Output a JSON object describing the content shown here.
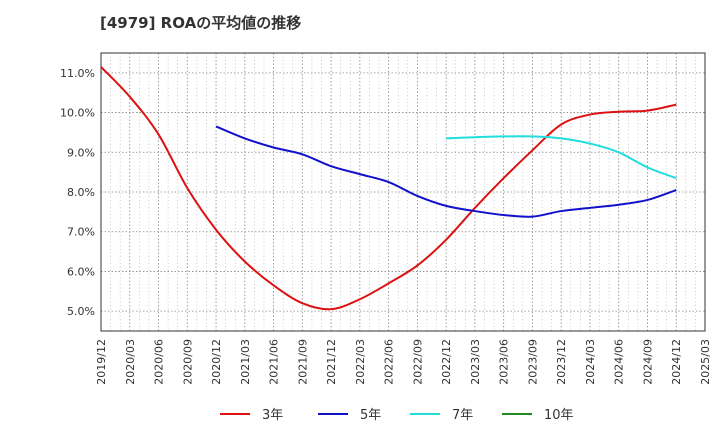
{
  "title": "[4979]  ROAの平均値の推移",
  "chart_data": {
    "type": "line",
    "title": "[4979]  ROAの平均値の推移",
    "xlabel": "",
    "ylabel": "",
    "x_ticks": [
      "2019/12",
      "2020/03",
      "2020/06",
      "2020/09",
      "2020/12",
      "2021/03",
      "2021/06",
      "2021/09",
      "2021/12",
      "2022/03",
      "2022/06",
      "2022/09",
      "2022/12",
      "2023/03",
      "2023/06",
      "2023/09",
      "2023/12",
      "2024/03",
      "2024/06",
      "2024/09",
      "2024/12",
      "2025/03"
    ],
    "y_ticks": [
      "5.0%",
      "6.0%",
      "7.0%",
      "8.0%",
      "9.0%",
      "10.0%",
      "11.0%"
    ],
    "ylim": [
      4.5,
      11.5
    ],
    "grid": true,
    "legend_position": "bottom",
    "series": [
      {
        "name": "3年",
        "color": "#dd1111",
        "x": [
          "2019/12",
          "2020/03",
          "2020/06",
          "2020/09",
          "2020/12",
          "2021/03",
          "2021/06",
          "2021/09",
          "2021/12",
          "2022/03",
          "2022/06",
          "2022/09",
          "2022/12",
          "2023/03",
          "2023/06",
          "2023/09",
          "2023/12",
          "2024/03",
          "2024/06",
          "2024/09",
          "2024/12"
        ],
        "values": [
          11.15,
          10.4,
          9.45,
          8.1,
          7.05,
          6.25,
          5.65,
          5.2,
          5.05,
          5.3,
          5.7,
          6.15,
          6.8,
          7.6,
          8.35,
          9.05,
          9.7,
          9.95,
          10.02,
          10.05,
          10.2
        ]
      },
      {
        "name": "5年",
        "color": "#1111cc",
        "x": [
          "2020/12",
          "2021/03",
          "2021/06",
          "2021/09",
          "2021/12",
          "2022/03",
          "2022/06",
          "2022/09",
          "2022/12",
          "2023/03",
          "2023/06",
          "2023/09",
          "2023/12",
          "2024/03",
          "2024/06",
          "2024/09",
          "2024/12"
        ],
        "values": [
          9.65,
          9.35,
          9.12,
          8.95,
          8.65,
          8.45,
          8.25,
          7.9,
          7.65,
          7.52,
          7.42,
          7.38,
          7.52,
          7.6,
          7.68,
          7.8,
          8.05
        ]
      },
      {
        "name": "7年",
        "color": "#22dddd",
        "x": [
          "2022/12",
          "2023/03",
          "2023/06",
          "2023/09",
          "2023/12",
          "2024/03",
          "2024/06",
          "2024/09",
          "2024/12"
        ],
        "values": [
          9.35,
          9.38,
          9.4,
          9.4,
          9.35,
          9.22,
          9.0,
          8.62,
          8.35
        ]
      },
      {
        "name": "10年",
        "color": "#228822",
        "x": [],
        "values": []
      }
    ]
  }
}
